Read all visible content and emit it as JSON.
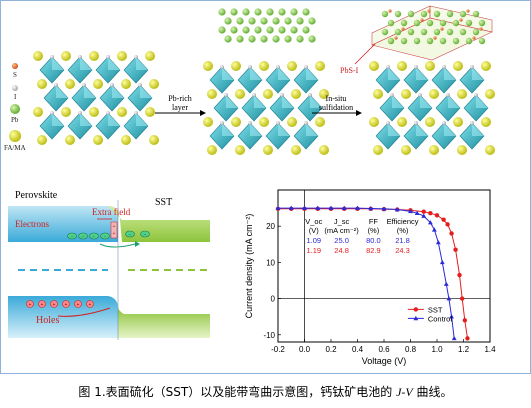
{
  "legend_elements": [
    "S",
    "I",
    "Pb",
    "FA/MA"
  ],
  "colors": {
    "S": "#e06a2a",
    "I": "#c8ccd4",
    "Pb": "#7ec24a",
    "FA_MA": "#d8d81a",
    "octahedron": "#3bb6c4",
    "sst_line": "#e41e1e",
    "control_line": "#2a2ad8",
    "frame": "#8fb3d9"
  },
  "process": {
    "step1_label": "Pb-rich\nlayer",
    "step1_line1": "Pb-rich",
    "step1_line2": "layer",
    "step2_line1": "In-situ",
    "step2_line2": "sulfidation",
    "pbsi_label": "PbS-I"
  },
  "band": {
    "perovskite_label": "Perovskite",
    "sst_label": "SST",
    "extra_field_label": "Extra field",
    "electrons_label": "Electrons",
    "holes_label": "Holes"
  },
  "caption": {
    "prefix": "图 1.表面硫化（SST）以及能带弯曲示意图，钙钛矿电池的 ",
    "jv": "J-V",
    "suffix": " 曲线。"
  },
  "chart_data": {
    "type": "line",
    "xlabel": "Voltage (V)",
    "ylabel": "Current density (mA cm⁻²)",
    "xlim": [
      -0.2,
      1.4
    ],
    "ylim": [
      -12,
      30
    ],
    "xticks": [
      -0.2,
      0.0,
      0.2,
      0.4,
      0.6,
      0.8,
      1.0,
      1.2,
      1.4
    ],
    "xtick_labels": [
      "-0.2",
      "0.0",
      "0.2",
      "0.4",
      "0.6",
      "0.8",
      "1.0",
      "1.2",
      "1.4"
    ],
    "yticks": [
      -10,
      0,
      10,
      20
    ],
    "ytick_labels": [
      "-10",
      "0",
      "10",
      "20"
    ],
    "legend_position": "bottom-right",
    "table": {
      "headers": [
        "V_oc",
        "J_sc",
        "FF",
        "Efficiency"
      ],
      "units": [
        "(V)",
        "(mA cm⁻²)",
        "(%)",
        "(%)"
      ],
      "rows": [
        {
          "values": [
            "1.09",
            "25.0",
            "80.0",
            "21.8"
          ],
          "series": "Control"
        },
        {
          "values": [
            "1.19",
            "24.8",
            "82.9",
            "24.3"
          ],
          "series": "SST"
        }
      ]
    },
    "series": [
      {
        "name": "SST",
        "x": [
          -0.2,
          -0.1,
          0.0,
          0.1,
          0.2,
          0.3,
          0.4,
          0.5,
          0.6,
          0.7,
          0.8,
          0.9,
          0.95,
          1.0,
          1.05,
          1.08,
          1.11,
          1.14,
          1.17,
          1.19,
          1.21,
          1.23
        ],
        "y": [
          24.8,
          24.8,
          24.8,
          24.8,
          24.8,
          24.8,
          24.8,
          24.8,
          24.7,
          24.6,
          24.4,
          24.0,
          23.6,
          23.0,
          21.8,
          20.5,
          18.0,
          13.5,
          6.5,
          0.0,
          -6.0,
          -11.0
        ]
      },
      {
        "name": "Control",
        "x": [
          -0.2,
          -0.1,
          0.0,
          0.1,
          0.2,
          0.3,
          0.4,
          0.5,
          0.6,
          0.7,
          0.8,
          0.85,
          0.9,
          0.95,
          0.98,
          1.01,
          1.04,
          1.07,
          1.09,
          1.11,
          1.13
        ],
        "y": [
          25.0,
          25.0,
          25.0,
          25.0,
          25.0,
          25.0,
          25.0,
          24.9,
          24.8,
          24.6,
          24.1,
          23.6,
          22.8,
          21.0,
          19.0,
          15.5,
          10.0,
          4.0,
          0.0,
          -5.0,
          -11.0
        ]
      }
    ]
  }
}
